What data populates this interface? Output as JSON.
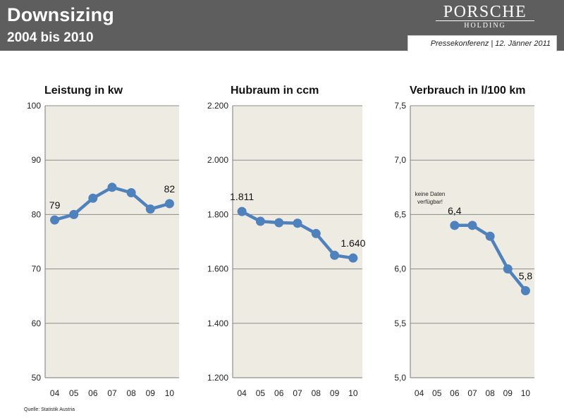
{
  "header": {
    "title": "Downsizing",
    "subtitle": "2004 bis 2010",
    "logo_main": "PORSCHE",
    "logo_sub": "HOLDING",
    "press": "Pressekonferenz | 12. Jänner 2011"
  },
  "footer": {
    "source": "Quelle: Statistik Austria"
  },
  "colors": {
    "plot_bg": "#eeebe3",
    "line": "#4f81bd",
    "grid": "#8c8c8c",
    "header_bg": "#5e5e5e"
  },
  "chart_data": [
    {
      "type": "line",
      "title": "Leistung in kw",
      "categories": [
        "04",
        "05",
        "06",
        "07",
        "08",
        "09",
        "10"
      ],
      "values": [
        79,
        80,
        83,
        85,
        84,
        81,
        82
      ],
      "ylim": [
        50,
        100
      ],
      "yticks": [
        "50",
        "60",
        "70",
        "80",
        "90",
        "100"
      ],
      "data_labels": [
        {
          "index": 0,
          "text": "79"
        },
        {
          "index": 6,
          "text": "82"
        }
      ],
      "grid": true
    },
    {
      "type": "line",
      "title": "Hubraum in ccm",
      "categories": [
        "04",
        "05",
        "06",
        "07",
        "08",
        "09",
        "10"
      ],
      "values": [
        1811,
        1775,
        1770,
        1768,
        1730,
        1650,
        1640
      ],
      "ylim": [
        1200,
        2200
      ],
      "yticks": [
        "1.200",
        "1.400",
        "1.600",
        "1.800",
        "2.000",
        "2.200"
      ],
      "data_labels": [
        {
          "index": 0,
          "text": "1.811"
        },
        {
          "index": 6,
          "text": "1.640"
        }
      ],
      "grid": true
    },
    {
      "type": "line",
      "title": "Verbrauch in l/100 km",
      "categories": [
        "04",
        "05",
        "06",
        "07",
        "08",
        "09",
        "10"
      ],
      "values": [
        null,
        null,
        6.4,
        6.4,
        6.3,
        6.0,
        5.8
      ],
      "ylim": [
        5.0,
        7.5
      ],
      "yticks": [
        "5,0",
        "5,5",
        "6,0",
        "6,5",
        "7,0",
        "7,5"
      ],
      "data_labels": [
        {
          "index": 2,
          "text": "6,4"
        },
        {
          "index": 6,
          "text": "5,8"
        }
      ],
      "annotation": [
        "keine Daten",
        "verfügbar!"
      ],
      "grid": true
    }
  ]
}
